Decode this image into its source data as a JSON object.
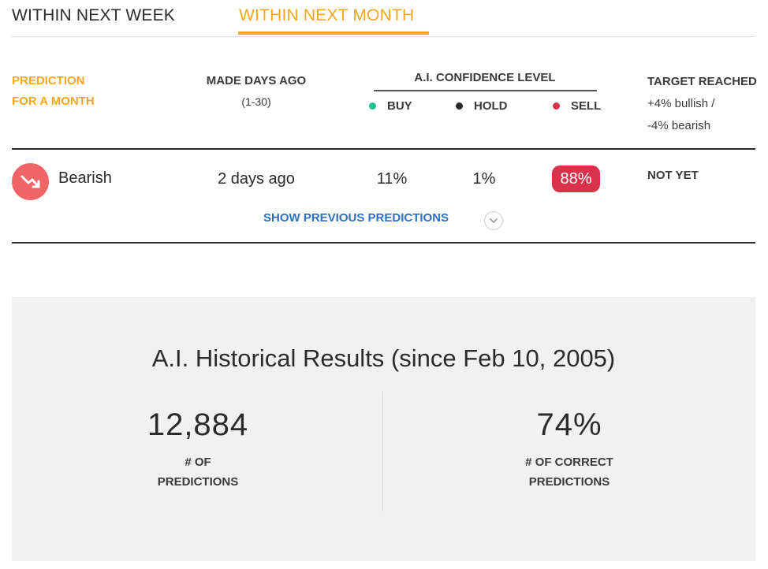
{
  "tabs": {
    "week": "WITHIN NEXT WEEK",
    "month": "WITHIN NEXT MONTH",
    "active": "month"
  },
  "header": {
    "prediction_line1": "PREDICTION",
    "prediction_line2": "FOR A MONTH",
    "days_title": "MADE DAYS AGO",
    "days_sub": "(1-30)",
    "confidence_title": "A.I. CONFIDENCE LEVEL",
    "buy": "BUY",
    "hold": "HOLD",
    "sell": "SELL",
    "target_title": "TARGET REACHED",
    "target_line2": "+4% bullish /",
    "target_line3": "-4% bearish"
  },
  "colors": {
    "accent": "#f5a623",
    "buy": "#1fbf8f",
    "hold": "#2b2b2b",
    "sell": "#d8334a",
    "link": "#2f6fc0",
    "bearish_icon_bg": "#f26567"
  },
  "prediction": {
    "trend_icon": "trend-down-icon",
    "trend": "Bearish",
    "made": "2 days ago",
    "buy_pct": "11%",
    "hold_pct": "1%",
    "sell_pct": "88%",
    "target_reached": "NOT YET"
  },
  "show_previous": {
    "label": "SHOW PREVIOUS PREDICTIONS",
    "icon": "chevron-down-icon"
  },
  "historical": {
    "title": "A.I. Historical Results (since Feb 10, 2005)",
    "predictions_count": "12,884",
    "predictions_label_1": "# OF",
    "predictions_label_2": "PREDICTIONS",
    "correct_pct": "74%",
    "correct_label_1": "# OF CORRECT",
    "correct_label_2": "PREDICTIONS"
  }
}
